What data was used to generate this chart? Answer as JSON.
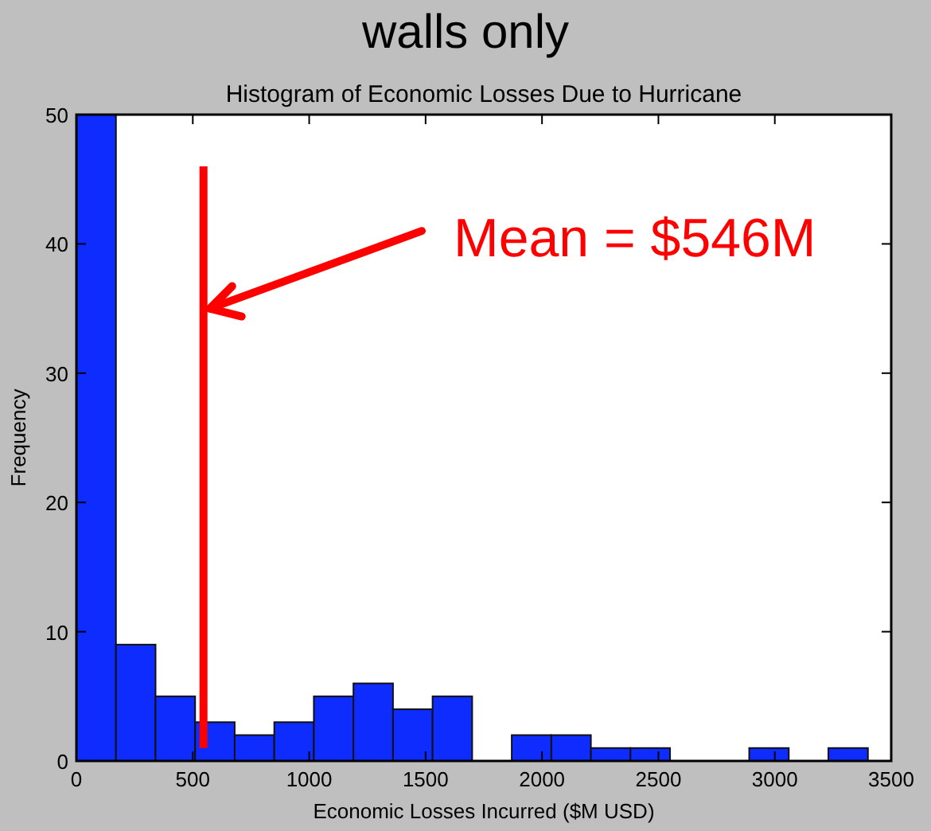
{
  "chart_data": {
    "type": "histogram",
    "title": "Histogram of Economic Losses Due to Hurricane",
    "xlabel": "Economic Losses Incurred ($M USD)",
    "ylabel": "Frequency",
    "bins": [
      0,
      170,
      340,
      510,
      680,
      850,
      1020,
      1190,
      1360,
      1530,
      1700,
      1870,
      2040,
      2210,
      2380,
      2550,
      2720,
      2890,
      3060,
      3230,
      3400
    ],
    "values": [
      50,
      9,
      5,
      3,
      2,
      3,
      5,
      6,
      4,
      5,
      0,
      2,
      2,
      1,
      1,
      0,
      0,
      1,
      0,
      1
    ],
    "color": "#0f2cff",
    "xlim": [
      0,
      3500
    ],
    "xticks": [
      0,
      500,
      1000,
      1500,
      2000,
      2500,
      3000,
      3500
    ],
    "ylim": [
      0,
      50
    ],
    "yticks": [
      0,
      10,
      20,
      30,
      40,
      50
    ],
    "ref_lines": [
      {
        "axis": "x",
        "value": 546,
        "label": "Mean = $546M",
        "color": "#ff0000"
      }
    ],
    "annotations": [
      "walls only"
    ]
  }
}
